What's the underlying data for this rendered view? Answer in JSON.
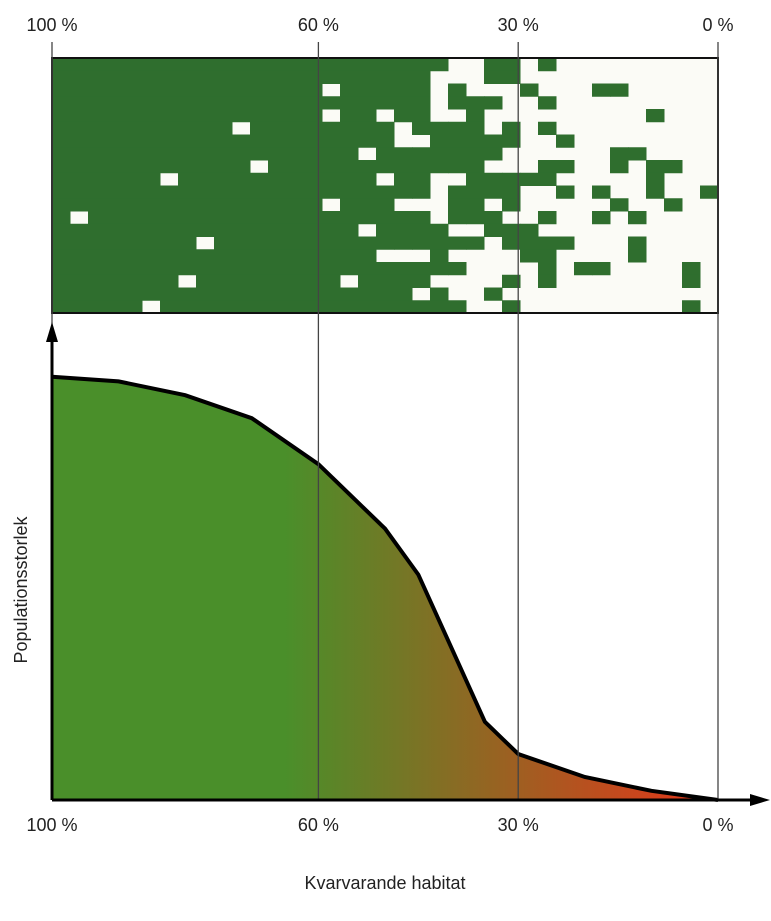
{
  "chart_data": {
    "type": "area",
    "xlabel": "Kvarvarande habitat",
    "ylabel": "Populationsstorlek",
    "x": [
      100,
      90,
      80,
      70,
      60,
      50,
      45,
      40,
      35,
      30,
      20,
      10,
      0
    ],
    "values": [
      92,
      91,
      88,
      83,
      73,
      59,
      49,
      33,
      17,
      10,
      5,
      2,
      0
    ],
    "xlim": [
      100,
      0
    ],
    "ylim": [
      0,
      100
    ],
    "xticks": [
      {
        "value": 100,
        "label": "100 %"
      },
      {
        "value": 60,
        "label": "60 %"
      },
      {
        "value": 30,
        "label": "30 %"
      },
      {
        "value": 0,
        "label": "0 %"
      }
    ],
    "color_start": "#4a8f2a",
    "color_end": "#e8351a",
    "patch_color": "#2f6e2e"
  }
}
